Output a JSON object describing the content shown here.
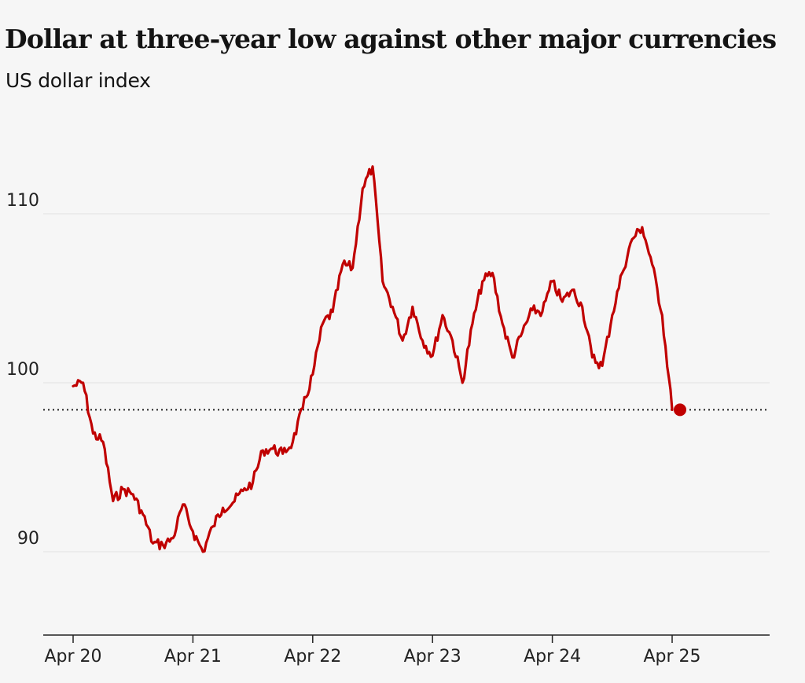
{
  "title": "Dollar at three-year low against other major currencies",
  "subtitle": "US dollar index",
  "colors": {
    "line": "#c00000",
    "grid": "#e5e5e5",
    "axis": "#222222",
    "reference": "#222222",
    "background": "#f6f6f6"
  },
  "chart_data": {
    "type": "line",
    "title": "Dollar at three-year low against other major currencies",
    "subtitle": "US dollar index",
    "xlabel": "",
    "ylabel": "",
    "x_ticks": [
      "Apr 20",
      "Apr 21",
      "Apr 22",
      "Apr 23",
      "Apr 24",
      "Apr 25"
    ],
    "y_ticks": [
      90,
      100,
      110
    ],
    "ylim": [
      85,
      115
    ],
    "xlim": [
      "2020-04",
      "2025-12"
    ],
    "grid": true,
    "reference_line": {
      "value": 98.4,
      "style": "dotted"
    },
    "end_marker": {
      "x": "2025-04",
      "y": 98.4
    },
    "series": [
      {
        "values": [
          [
            "2020-04",
            99.8
          ],
          [
            "2020-05",
            100.0
          ],
          [
            "2020-06",
            97.0
          ],
          [
            "2020-07",
            96.5
          ],
          [
            "2020-08",
            93.0
          ],
          [
            "2020-09",
            93.7
          ],
          [
            "2020-10",
            93.4
          ],
          [
            "2020-11",
            92.2
          ],
          [
            "2020-12",
            90.5
          ],
          [
            "2021-01",
            90.4
          ],
          [
            "2021-02",
            90.8
          ],
          [
            "2021-03",
            92.8
          ],
          [
            "2021-04",
            91.2
          ],
          [
            "2021-05",
            90.0
          ],
          [
            "2021-06",
            91.5
          ],
          [
            "2021-07",
            92.6
          ],
          [
            "2021-08",
            92.9
          ],
          [
            "2021-09",
            93.6
          ],
          [
            "2021-10",
            94.1
          ],
          [
            "2021-11",
            96.0
          ],
          [
            "2021-12",
            96.1
          ],
          [
            "2022-01",
            95.8
          ],
          [
            "2022-02",
            96.5
          ],
          [
            "2022-03",
            98.5
          ],
          [
            "2022-04",
            100.5
          ],
          [
            "2022-05",
            103.5
          ],
          [
            "2022-06",
            104.2
          ],
          [
            "2022-07",
            107.0
          ],
          [
            "2022-08",
            106.8
          ],
          [
            "2022-09",
            111.5
          ],
          [
            "2022-10",
            112.8
          ],
          [
            "2022-11",
            106.0
          ],
          [
            "2022-12",
            104.5
          ],
          [
            "2023-01",
            102.5
          ],
          [
            "2023-02",
            104.5
          ],
          [
            "2023-03",
            102.5
          ],
          [
            "2023-04",
            101.6
          ],
          [
            "2023-05",
            104.0
          ],
          [
            "2023-06",
            102.5
          ],
          [
            "2023-07",
            100.0
          ],
          [
            "2023-08",
            103.5
          ],
          [
            "2023-09",
            106.0
          ],
          [
            "2023-10",
            106.5
          ],
          [
            "2023-11",
            103.5
          ],
          [
            "2023-12",
            101.5
          ],
          [
            "2024-01",
            103.0
          ],
          [
            "2024-02",
            104.3
          ],
          [
            "2024-03",
            104.2
          ],
          [
            "2024-04",
            106.0
          ],
          [
            "2024-05",
            104.8
          ],
          [
            "2024-06",
            105.5
          ],
          [
            "2024-07",
            104.5
          ],
          [
            "2024-08",
            101.5
          ],
          [
            "2024-09",
            101.0
          ],
          [
            "2024-10",
            104.0
          ],
          [
            "2024-11",
            106.5
          ],
          [
            "2024-12",
            108.5
          ],
          [
            "2025-01",
            109.2
          ],
          [
            "2025-02",
            107.0
          ],
          [
            "2025-03",
            104.0
          ],
          [
            "2025-04",
            98.4
          ]
        ]
      }
    ]
  }
}
